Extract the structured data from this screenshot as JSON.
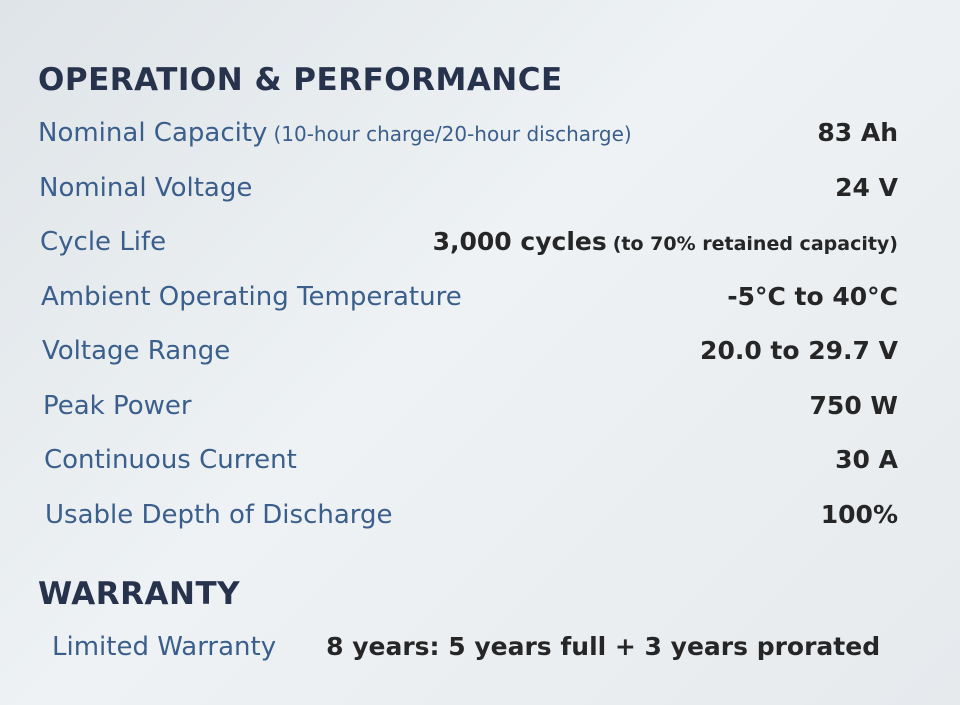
{
  "sections": [
    {
      "title": "OPERATION & PERFORMANCE",
      "rows": [
        {
          "label": "Nominal Capacity",
          "note": "(10-hour charge/20-hour discharge)",
          "value": "83 Ah"
        },
        {
          "label": "Nominal Voltage",
          "value": "24 V"
        },
        {
          "label": "Cycle Life",
          "value": "3,000 cycles",
          "value_note": "(to 70% retained capacity)"
        },
        {
          "label": "Ambient Operating Temperature",
          "value": "-5°C to 40°C"
        },
        {
          "label": "Voltage Range",
          "value": "20.0 to 29.7 V"
        },
        {
          "label": "Peak Power",
          "value": "750 W"
        },
        {
          "label": "Continuous Current",
          "value": "30 A"
        },
        {
          "label": "Usable Depth of Discharge",
          "value": "100%"
        }
      ]
    },
    {
      "title": "WARRANTY",
      "rows": [
        {
          "label": "Limited Warranty",
          "value": "8 years: 5 years full + 3 years prorated"
        }
      ]
    }
  ]
}
